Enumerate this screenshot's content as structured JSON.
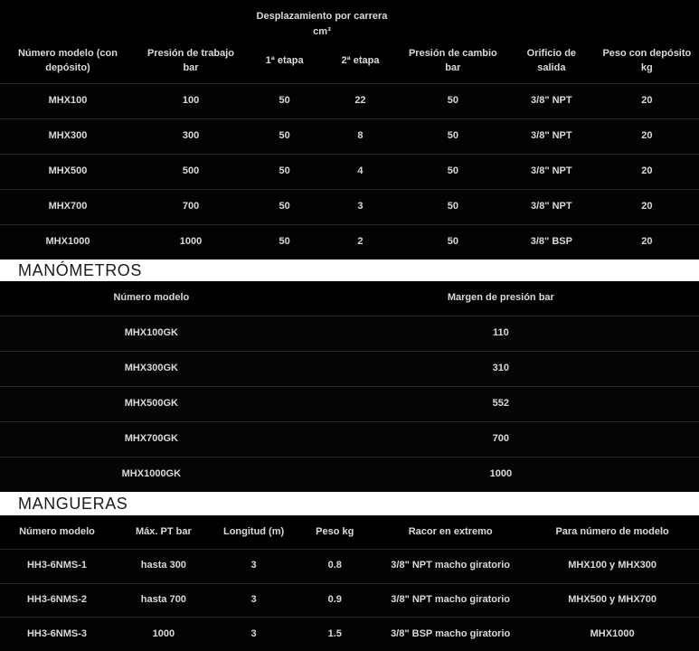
{
  "colors": {
    "background": "#000000",
    "row_separator": "#282828",
    "text": "#dadada",
    "band_background": "#ffffff",
    "band_text": "#1b1b1b"
  },
  "spec_table": {
    "group_header": "Desplazamiento por carrera\ncm³",
    "columns": [
      "Número modelo (con\ndepósito)",
      "Presión de trabajo\nbar",
      "1ª etapa",
      "2ª etapa",
      "Presión de cambio\nbar",
      "Orificio de\nsalida",
      "Peso con depósito\nkg"
    ],
    "rows": [
      [
        "MHX100",
        "100",
        "50",
        "22",
        "50",
        "3/8\" NPT",
        "20"
      ],
      [
        "MHX300",
        "300",
        "50",
        "8",
        "50",
        "3/8\" NPT",
        "20"
      ],
      [
        "MHX500",
        "500",
        "50",
        "4",
        "50",
        "3/8\" NPT",
        "20"
      ],
      [
        "MHX700",
        "700",
        "50",
        "3",
        "50",
        "3/8\" NPT",
        "20"
      ],
      [
        "MHX1000",
        "1000",
        "50",
        "2",
        "50",
        "3/8\" BSP",
        "20"
      ]
    ]
  },
  "manometros": {
    "title": "MANÓMETROS",
    "columns": [
      "Número modelo",
      "Margen de presión bar"
    ],
    "rows": [
      [
        "MHX100GK",
        "110"
      ],
      [
        "MHX300GK",
        "310"
      ],
      [
        "MHX500GK",
        "552"
      ],
      [
        "MHX700GK",
        "700"
      ],
      [
        "MHX1000GK",
        "1000"
      ]
    ]
  },
  "mangueras": {
    "title": "MANGUERAS",
    "columns": [
      "Número modelo",
      "Máx. PT bar",
      "Longitud (m)",
      "Peso kg",
      "Racor en extremo",
      "Para número de modelo"
    ],
    "rows": [
      [
        "HH3-6NMS-1",
        "hasta 300",
        "3",
        "0.8",
        "3/8\" NPT macho giratorio",
        "MHX100 y MHX300"
      ],
      [
        "HH3-6NMS-2",
        "hasta 700",
        "3",
        "0.9",
        "3/8\" NPT macho giratorio",
        "MHX500 y MHX700"
      ],
      [
        "HH3-6NMS-3",
        "1000",
        "3",
        "1.5",
        "3/8\" BSP macho giratorio",
        "MHX1000"
      ]
    ]
  }
}
